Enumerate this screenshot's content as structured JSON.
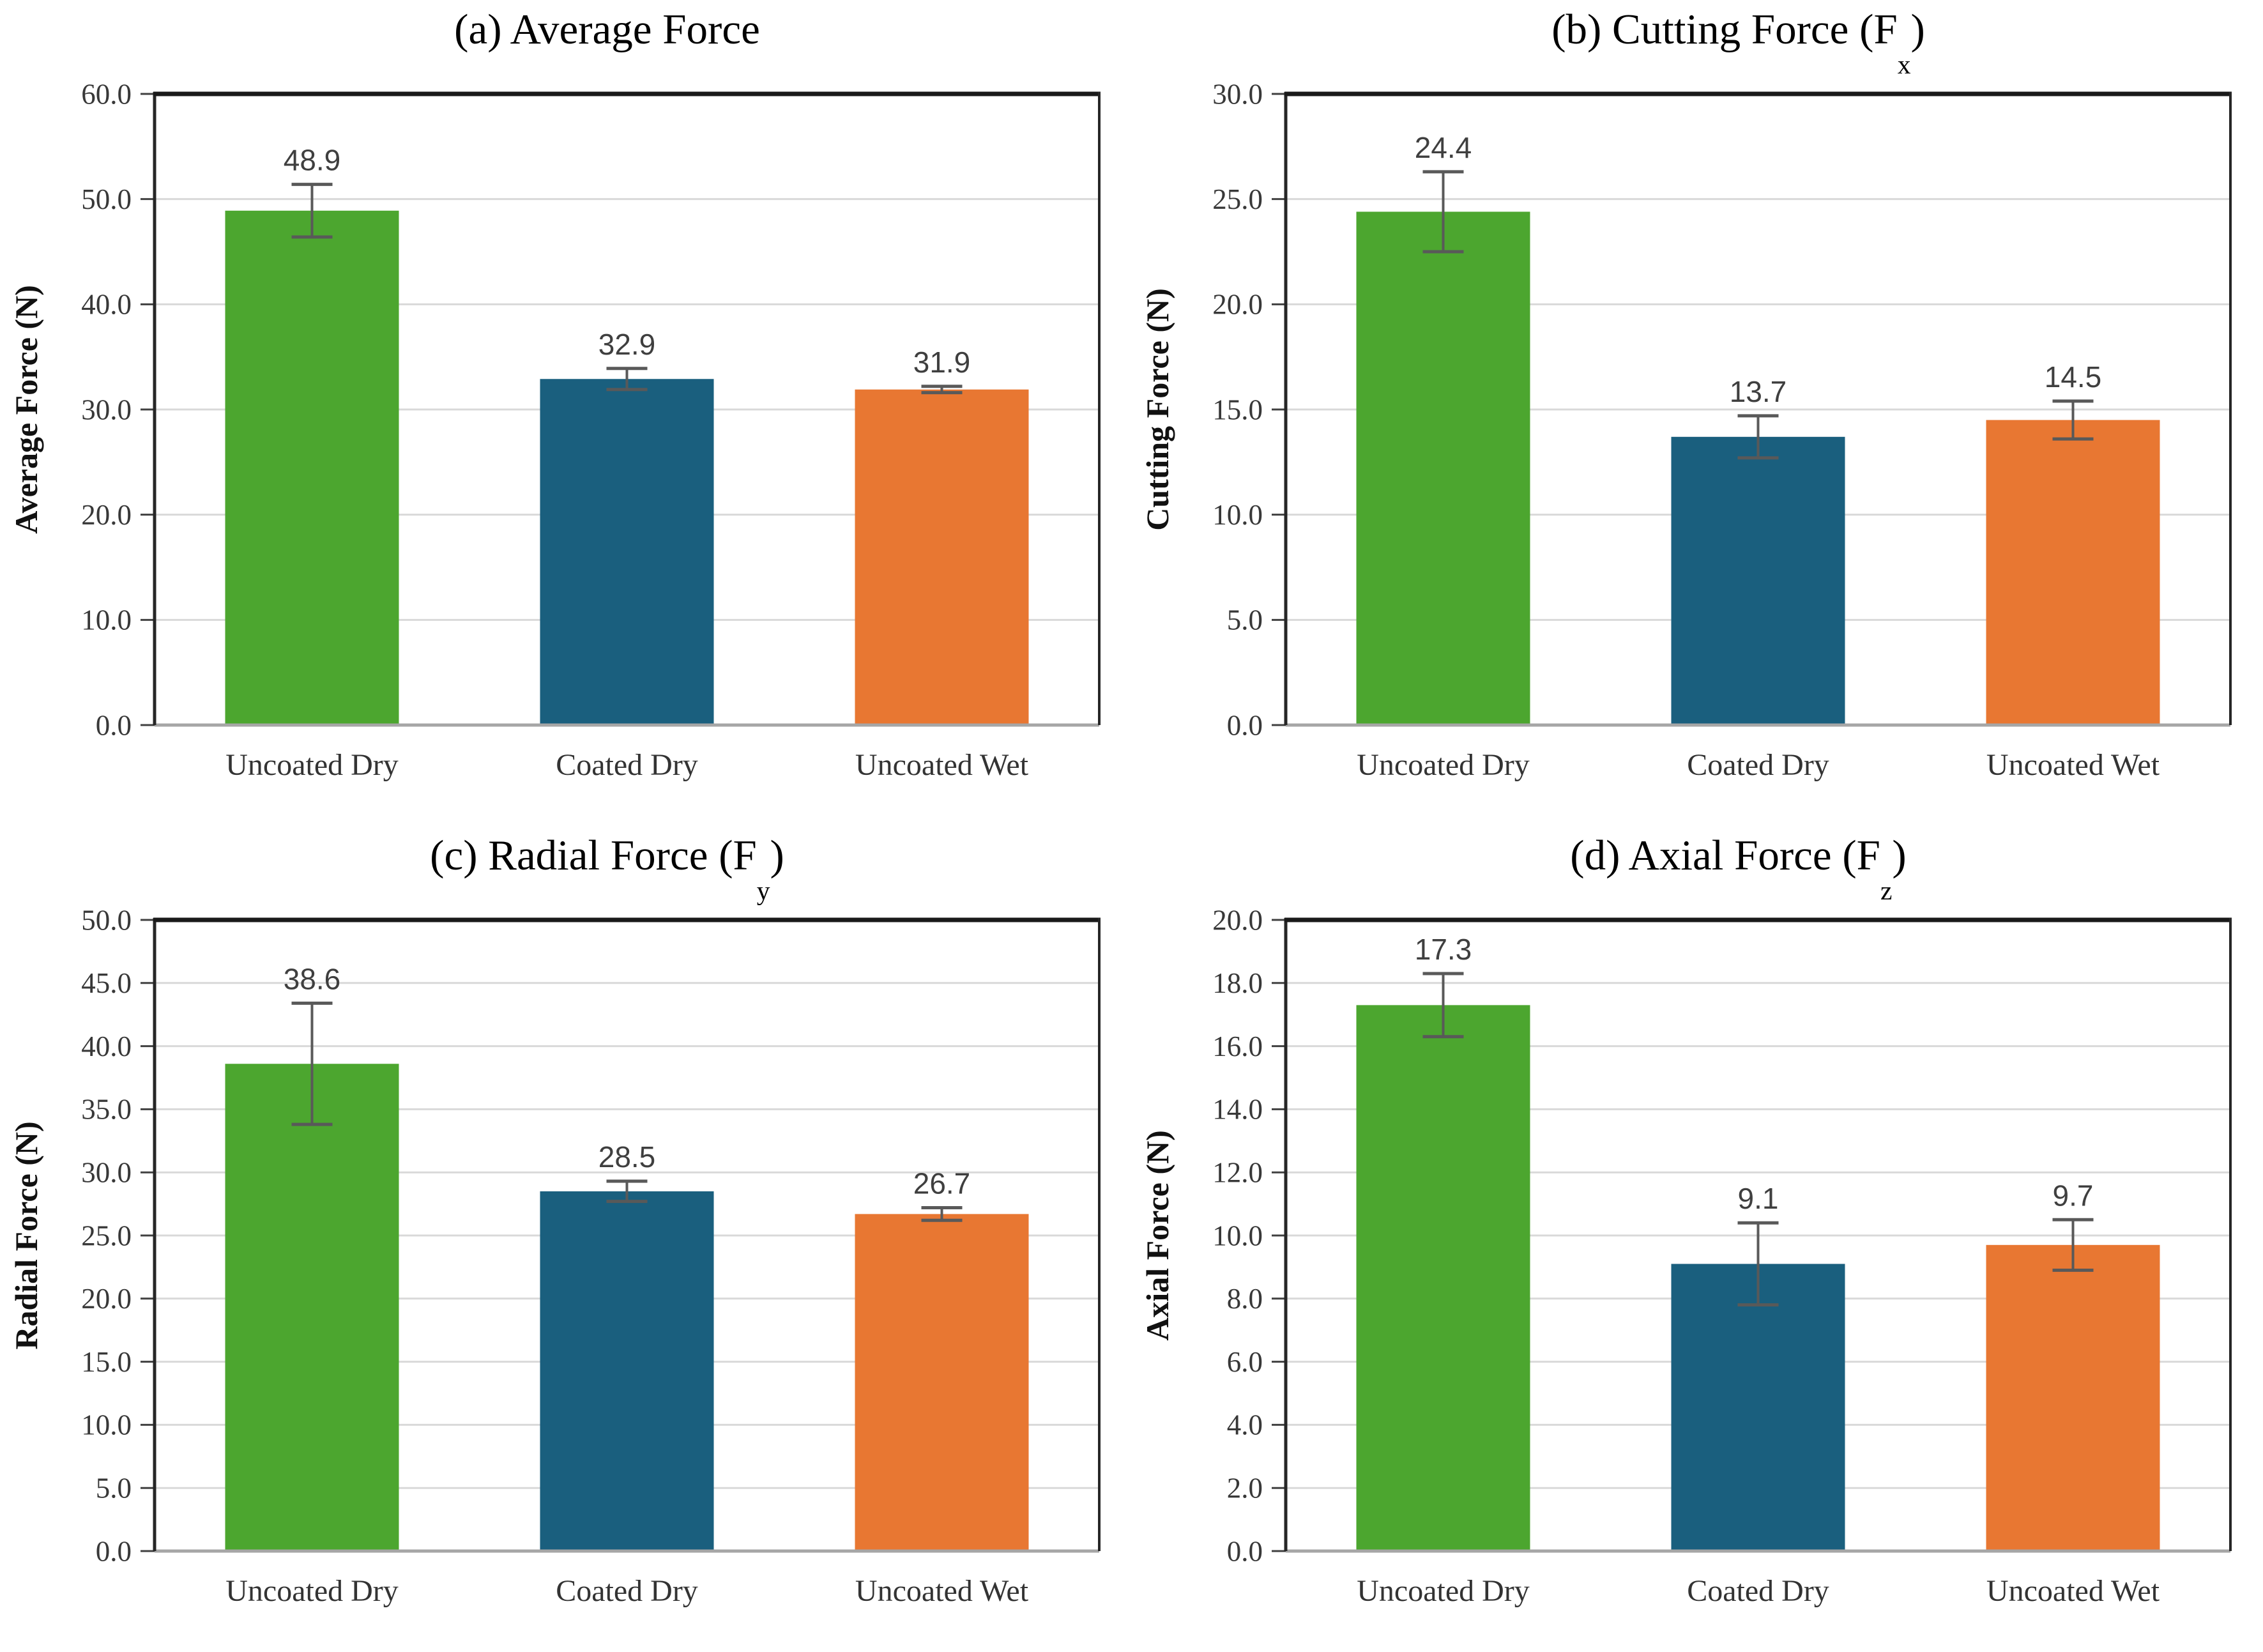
{
  "style": {
    "background": "#ffffff",
    "bar_colors": [
      "#4CA62F",
      "#1A5F7E",
      "#E87732"
    ],
    "grid_color": "#D9D9D9",
    "axis_left_color": "#262626",
    "axis_top_color": "#1A1A1A",
    "axis_right_color": "#262626",
    "axis_bottom_color": "#A6A6A6",
    "tick_color": "#404040",
    "tick_label_color": "#383838",
    "x_label_color": "#333333",
    "value_label_color": "#3F3F3F",
    "error_bar_color": "#595959",
    "title_color": "#000000"
  },
  "chart_data": [
    {
      "id": "average-force",
      "type": "bar",
      "title": {
        "text": "(a) Average Force",
        "sub": "",
        "suffix": ""
      },
      "ylabel": "Average Force (N)",
      "xlabel": "",
      "categories": [
        "Uncoated Dry",
        "Coated Dry",
        "Uncoated Wet"
      ],
      "values": [
        48.9,
        32.9,
        31.9
      ],
      "errors": [
        2.5,
        1.0,
        0.3
      ],
      "value_labels": [
        "48.9",
        "32.9",
        "31.9"
      ],
      "ylim": [
        0,
        60
      ],
      "ytick_step": 10,
      "grid": true,
      "legend": "none"
    },
    {
      "id": "cutting-force",
      "type": "bar",
      "title": {
        "text": "(b) Cutting Force (F",
        "sub": "x",
        "suffix": ")"
      },
      "ylabel": "Cutting Force (N)",
      "xlabel": "",
      "categories": [
        "Uncoated Dry",
        "Coated Dry",
        "Uncoated Wet"
      ],
      "values": [
        24.4,
        13.7,
        14.5
      ],
      "errors": [
        1.9,
        1.0,
        0.9
      ],
      "value_labels": [
        "24.4",
        "13.7",
        "14.5"
      ],
      "ylim": [
        0,
        30
      ],
      "ytick_step": 5,
      "grid": true,
      "legend": "none"
    },
    {
      "id": "radial-force",
      "type": "bar",
      "title": {
        "text": "(c) Radial Force (F",
        "sub": "y",
        "suffix": ")"
      },
      "ylabel": "Radial Force (N)",
      "xlabel": "",
      "categories": [
        "Uncoated Dry",
        "Coated Dry",
        "Uncoated Wet"
      ],
      "values": [
        38.6,
        28.5,
        26.7
      ],
      "errors": [
        4.8,
        0.8,
        0.5
      ],
      "value_labels": [
        "38.6",
        "28.5",
        "26.7"
      ],
      "ylim": [
        0,
        50
      ],
      "ytick_step": 5,
      "grid": true,
      "legend": "none"
    },
    {
      "id": "axial-force",
      "type": "bar",
      "title": {
        "text": "(d) Axial Force (F",
        "sub": "z",
        "suffix": ")"
      },
      "ylabel": "Axial Force (N)",
      "xlabel": "",
      "categories": [
        "Uncoated Dry",
        "Coated Dry",
        "Uncoated Wet"
      ],
      "values": [
        17.3,
        9.1,
        9.7
      ],
      "errors": [
        1.0,
        1.3,
        0.8
      ],
      "value_labels": [
        "17.3",
        "9.1",
        "9.7"
      ],
      "ylim": [
        0,
        20
      ],
      "ytick_step": 2,
      "grid": true,
      "legend": "none"
    }
  ]
}
